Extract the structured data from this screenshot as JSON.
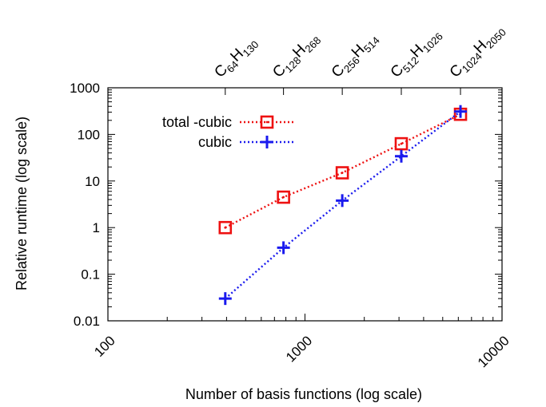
{
  "chart_data": {
    "type": "line",
    "title": "",
    "xlabel": "Number of basis functions (log scale)",
    "ylabel": "Relative runtime (log scale)",
    "xscale": "log",
    "yscale": "log",
    "xlim": [
      100,
      10000
    ],
    "ylim": [
      0.01,
      1000
    ],
    "xticks": [
      {
        "value": 100,
        "label": "100"
      },
      {
        "value": 1000,
        "label": "1000"
      },
      {
        "value": 10000,
        "label": "10000"
      }
    ],
    "yticks": [
      {
        "value": 0.01,
        "label": "0.01"
      },
      {
        "value": 0.1,
        "label": "0.1"
      },
      {
        "value": 1,
        "label": "1"
      },
      {
        "value": 10,
        "label": "10"
      },
      {
        "value": 100,
        "label": "100"
      },
      {
        "value": 1000,
        "label": "1000"
      }
    ],
    "top_axis_labels": [
      {
        "x": 394,
        "parts": [
          {
            "t": "C",
            "sub": false
          },
          {
            "t": "64",
            "sub": true
          },
          {
            "t": "H",
            "sub": false
          },
          {
            "t": "130",
            "sub": true
          }
        ]
      },
      {
        "x": 778,
        "parts": [
          {
            "t": "C",
            "sub": false
          },
          {
            "t": "128",
            "sub": true
          },
          {
            "t": "H",
            "sub": false
          },
          {
            "t": "268",
            "sub": true
          }
        ]
      },
      {
        "x": 1546,
        "parts": [
          {
            "t": "C",
            "sub": false
          },
          {
            "t": "256",
            "sub": true
          },
          {
            "t": "H",
            "sub": false
          },
          {
            "t": "514",
            "sub": true
          }
        ]
      },
      {
        "x": 3082,
        "parts": [
          {
            "t": "C",
            "sub": false
          },
          {
            "t": "512",
            "sub": true
          },
          {
            "t": "H",
            "sub": false
          },
          {
            "t": "1026",
            "sub": true
          }
        ]
      },
      {
        "x": 6154,
        "parts": [
          {
            "t": "C",
            "sub": false
          },
          {
            "t": "1024",
            "sub": true
          },
          {
            "t": "H",
            "sub": false
          },
          {
            "t": "2050",
            "sub": true
          }
        ]
      }
    ],
    "legend_position": "top-left",
    "grid": false,
    "series": [
      {
        "name": "total -cubic",
        "color": "#ee1111",
        "marker": "square-dot",
        "line": "dotted",
        "x": [
          394,
          778,
          1546,
          3082,
          6154
        ],
        "y": [
          1.0,
          4.5,
          15,
          63,
          270
        ]
      },
      {
        "name": "cubic",
        "color": "#1a1aee",
        "marker": "plus",
        "line": "dotted",
        "x": [
          394,
          778,
          1546,
          3082,
          6154
        ],
        "y": [
          0.03,
          0.37,
          3.8,
          34,
          310
        ]
      }
    ]
  }
}
